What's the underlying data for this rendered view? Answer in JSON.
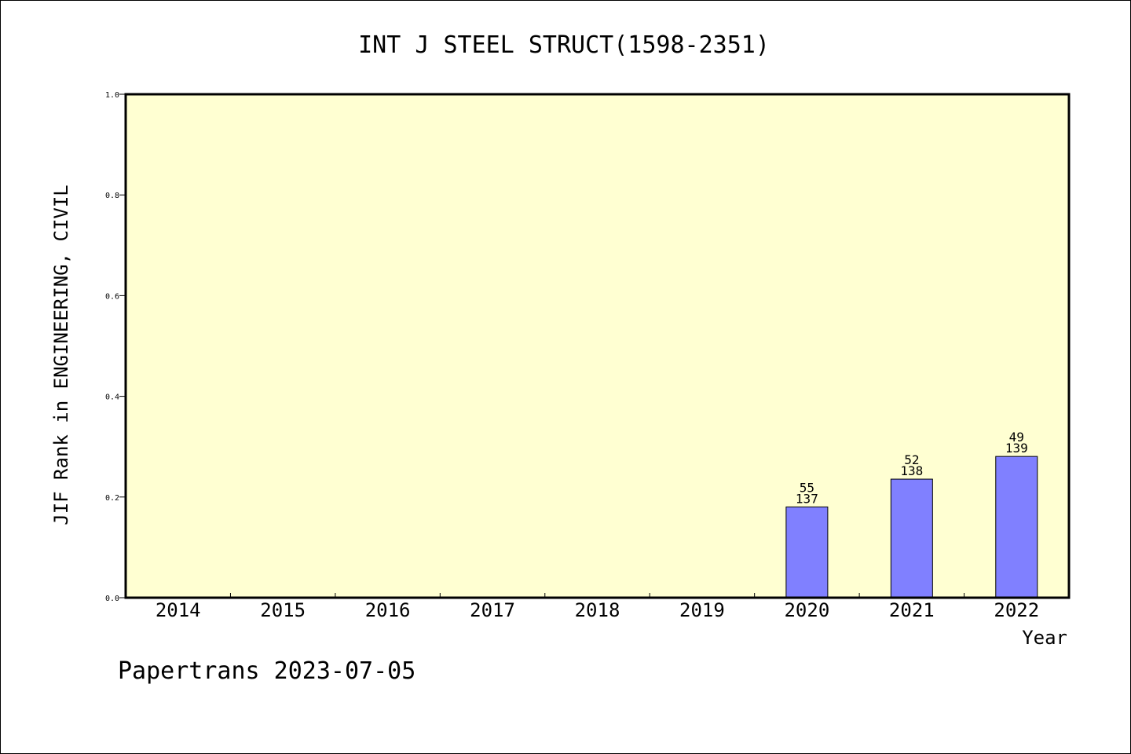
{
  "chart_data": {
    "type": "bar",
    "title": "INT J STEEL STRUCT(1598-2351)",
    "ylabel": "JIF Rank in ENGINEERING, CIVIL",
    "xlabel": "Year",
    "categories": [
      "2014",
      "2015",
      "2016",
      "2017",
      "2018",
      "2019",
      "2020",
      "2021",
      "2022"
    ],
    "values": [
      null,
      null,
      null,
      null,
      null,
      null,
      0.1803,
      0.2355,
      0.2806
    ],
    "rank_labels": [
      "",
      "",
      "",
      "",
      "",
      "",
      "55",
      "52",
      "49"
    ],
    "total_labels": [
      "",
      "",
      "",
      "",
      "",
      "",
      "137",
      "138",
      "139"
    ],
    "ylim": [
      0,
      1.0
    ],
    "yticks": [
      "0.0",
      "0.2",
      "0.4",
      "0.6",
      "0.8",
      "1.0"
    ],
    "grid": false,
    "plot_background": "#ffffd2",
    "bar_color": "#8080ff"
  },
  "footer": "Papertrans 2023-07-05"
}
